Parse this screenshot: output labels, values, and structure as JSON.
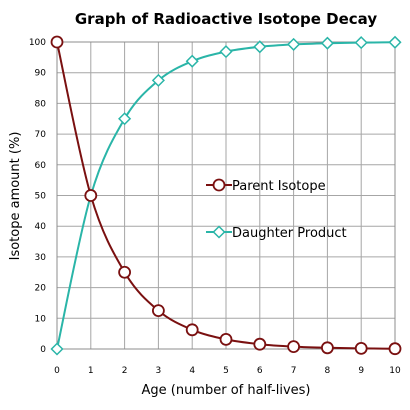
{
  "chart_data": {
    "type": "line",
    "title": "Graph of Radioactive Isotope Decay",
    "xlabel": "Age  (number of half-lives)",
    "ylabel": "Isotope  amount  (%)",
    "xlim": [
      0,
      10
    ],
    "ylim": [
      0,
      100
    ],
    "x_ticks": [
      0,
      1,
      2,
      3,
      4,
      5,
      6,
      7,
      8,
      9,
      10
    ],
    "y_ticks": [
      0,
      10,
      20,
      30,
      40,
      50,
      60,
      70,
      80,
      90,
      100
    ],
    "grid": true,
    "legend_position": "center-right",
    "x": [
      0,
      1,
      2,
      3,
      4,
      5,
      6,
      7,
      8,
      9,
      10
    ],
    "series": [
      {
        "name": "Parent Isotope",
        "color": "#7a1010",
        "marker": "circle",
        "values": [
          100,
          50,
          25,
          12.5,
          6.25,
          3.125,
          1.5625,
          0.78,
          0.39,
          0.2,
          0.1
        ]
      },
      {
        "name": "Daughter Product",
        "color": "#2ab5a8",
        "marker": "diamond",
        "values": [
          0,
          50,
          75,
          87.5,
          93.75,
          96.875,
          98.44,
          99.22,
          99.61,
          99.8,
          99.9
        ]
      }
    ]
  }
}
